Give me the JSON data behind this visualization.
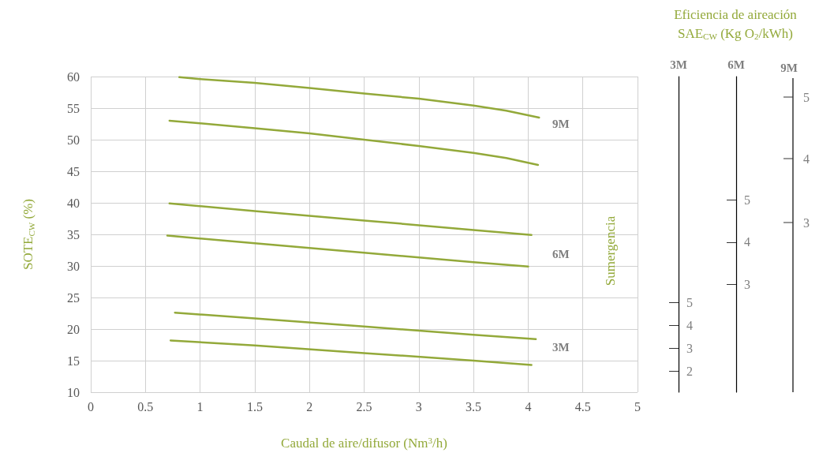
{
  "chart_data": {
    "type": "line",
    "xlabel": "Caudal de aire/difusor (Nm$^{3}$/h)",
    "ylabel": "SOTE$_{CW}$ (%)",
    "xlim": [
      0,
      5
    ],
    "xticks": [
      0,
      0.5,
      1,
      1.5,
      2,
      2.5,
      3,
      3.5,
      4,
      4.5,
      5
    ],
    "ylim": [
      10,
      60
    ],
    "yticks": [
      10,
      15,
      20,
      25,
      30,
      35,
      40,
      45,
      50,
      55,
      60
    ],
    "y2label": "3M",
    "y2lim": [
      1.1,
      14.8
    ],
    "y2ticks": [
      2,
      3,
      4,
      5
    ],
    "y3label": "6M",
    "y3lim": [
      0.43,
      7.94
    ],
    "y3ticks": [
      3,
      4,
      5
    ],
    "grid": true,
    "marker": "none",
    "line_style": "solid",
    "series": [
      {
        "color": "#93a93a",
        "x": [
          0.81,
          1,
          1.5,
          2,
          2.5,
          3,
          3.5,
          3.8,
          4.1
        ],
        "values": [
          59.9,
          59.6,
          59.0,
          58.2,
          57.3,
          56.5,
          55.4,
          54.6,
          53.5
        ]
      },
      {
        "color": "#93a93a",
        "x": [
          0.72,
          1,
          1.5,
          2,
          2.5,
          3,
          3.5,
          3.8,
          4.09
        ],
        "values": [
          53.0,
          52.6,
          51.8,
          51.0,
          50.0,
          49.0,
          47.9,
          47.1,
          46.0
        ]
      },
      {
        "color": "#93a93a",
        "x": [
          0.72,
          1.5,
          2.5,
          3.5,
          4.03
        ],
        "values": [
          39.9,
          38.7,
          37.2,
          35.7,
          34.9
        ]
      },
      {
        "color": "#93a93a",
        "x": [
          0.7,
          1.5,
          2.5,
          3.5,
          4.0
        ],
        "values": [
          34.8,
          33.6,
          32.1,
          30.6,
          29.9
        ]
      },
      {
        "color": "#93a93a",
        "x": [
          0.77,
          1.5,
          2.5,
          3.5,
          4.07
        ],
        "values": [
          22.6,
          21.7,
          20.4,
          19.1,
          18.4
        ]
      },
      {
        "color": "#93a93a",
        "x": [
          0.73,
          1.5,
          2.5,
          3.5,
          4.03
        ],
        "values": [
          18.2,
          17.4,
          16.2,
          15.0,
          14.3
        ]
      }
    ],
    "annotations": [
      "9M",
      "6M",
      "3M",
      "Sumergencia",
      "Eficiencia de aireación\nSAE$_{CW}$ (Kg O$_{2}$/kWh)",
      "9M",
      "5",
      "4",
      "3"
    ]
  }
}
